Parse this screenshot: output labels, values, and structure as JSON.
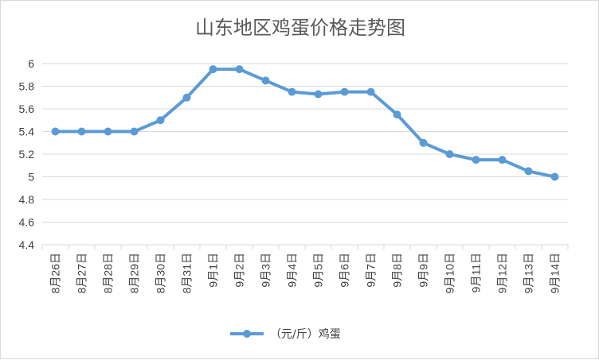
{
  "chart_data": {
    "type": "line",
    "title": "山东地区鸡蛋价格走势图",
    "categories": [
      "8月26日",
      "8月27日",
      "8月28日",
      "8月29日",
      "8月30日",
      "8月31日",
      "9月1日",
      "9月2日",
      "9月3日",
      "9月4日",
      "9月5日",
      "9月6日",
      "9月7日",
      "9月8日",
      "9月9日",
      "9月10日",
      "9月11日",
      "9月12日",
      "9月13日",
      "9月14日"
    ],
    "series": [
      {
        "name": "（元/斤）鸡蛋",
        "values": [
          5.4,
          5.4,
          5.4,
          5.4,
          5.5,
          5.7,
          5.95,
          5.95,
          5.85,
          5.75,
          5.73,
          5.75,
          5.75,
          5.55,
          5.3,
          5.2,
          5.15,
          5.15,
          5.05,
          5.0
        ]
      }
    ],
    "ylim": [
      4.4,
      6.0
    ],
    "yticks": [
      "6",
      "5.8",
      "5.6",
      "5.4",
      "5.2",
      "5",
      "4.8",
      "4.6",
      "4.4"
    ],
    "xlabel": "",
    "ylabel": "",
    "grid": true,
    "legend_position": "bottom",
    "series_color": "#5b9bd5"
  }
}
